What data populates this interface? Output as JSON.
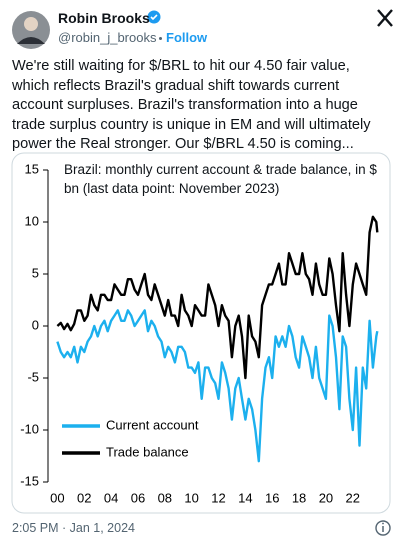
{
  "tweet": {
    "author": {
      "name": "Robin Brooks",
      "handle": "@robin_j_brooks"
    },
    "follow": "Follow",
    "text": "We're still waiting for $/BRL to hit our 4.50 fair value, which reflects Brazil's gradual shift towards current account surpluses. Brazil's transformation into a huge trade surplus country is unique in EM and will ultimately power the Real stronger. Our $/BRL 4.50 is coming...",
    "timestamp": "2:05 PM · Jan 1, 2024"
  },
  "chart_data": {
    "type": "line",
    "title": "Brazil: monthly current account & trade balance, in $ bn (last data point: November 2023)",
    "x": [
      2000,
      2000.25,
      2000.5,
      2000.75,
      2001,
      2001.25,
      2001.5,
      2001.75,
      2002,
      2002.25,
      2002.5,
      2002.75,
      2003,
      2003.25,
      2003.5,
      2003.75,
      2004,
      2004.25,
      2004.5,
      2004.75,
      2005,
      2005.25,
      2005.5,
      2005.75,
      2006,
      2006.25,
      2006.5,
      2006.75,
      2007,
      2007.25,
      2007.5,
      2007.75,
      2008,
      2008.25,
      2008.5,
      2008.75,
      2009,
      2009.25,
      2009.5,
      2009.75,
      2010,
      2010.25,
      2010.5,
      2010.75,
      2011,
      2011.25,
      2011.5,
      2011.75,
      2012,
      2012.25,
      2012.5,
      2012.75,
      2013,
      2013.25,
      2013.5,
      2013.75,
      2014,
      2014.25,
      2014.5,
      2014.75,
      2015,
      2015.25,
      2015.5,
      2015.75,
      2016,
      2016.25,
      2016.5,
      2016.75,
      2017,
      2017.25,
      2017.5,
      2017.75,
      2018,
      2018.25,
      2018.5,
      2018.75,
      2019,
      2019.25,
      2019.5,
      2019.75,
      2020,
      2020.25,
      2020.5,
      2020.75,
      2021,
      2021.25,
      2021.5,
      2021.75,
      2022,
      2022.25,
      2022.5,
      2022.75,
      2023,
      2023.25,
      2023.5,
      2023.75,
      2023.83
    ],
    "series": [
      {
        "name": "Current account",
        "color": "#1cb0ee",
        "values": [
          -1.5,
          -2.5,
          -3,
          -2.5,
          -3,
          -2,
          -3.5,
          -2,
          -2.5,
          -1.5,
          -1,
          0,
          -1,
          0,
          0.5,
          -0.5,
          0.5,
          1,
          1.5,
          0.5,
          0.5,
          1.5,
          1,
          0,
          0.5,
          1,
          1.5,
          -0.5,
          0.5,
          0,
          -1,
          -1.5,
          -3,
          -2,
          -2.5,
          -3.5,
          -2,
          -2,
          -2.5,
          -4,
          -4,
          -4.5,
          -3.5,
          -7,
          -4,
          -4,
          -5,
          -5.5,
          -7,
          -3.5,
          -4.5,
          -6,
          -9,
          -6,
          -5,
          -7,
          -9,
          -7,
          -8,
          -10,
          -13,
          -7,
          -4,
          -3,
          -5,
          -1,
          -2,
          -1,
          -2,
          0,
          -1,
          -3,
          -4,
          -1,
          -2,
          -3,
          -5,
          -2,
          -5,
          -6,
          -7,
          1,
          0,
          -3,
          -8,
          -1,
          -2,
          -7,
          -10,
          -4,
          -11.5,
          -4,
          -6,
          0.5,
          -4,
          -1,
          -0.5
        ]
      },
      {
        "name": "Trade balance",
        "color": "#000000",
        "values": [
          0,
          0.3,
          -0.3,
          0.2,
          -0.4,
          0.2,
          1.5,
          1.5,
          0.5,
          1,
          3,
          2,
          1.5,
          3,
          3,
          2.5,
          2.5,
          4,
          3.5,
          3,
          3,
          4.5,
          4.5,
          3.5,
          3,
          4,
          5,
          3,
          2.5,
          4,
          3,
          2,
          1,
          2.5,
          1,
          1,
          0,
          3,
          1.5,
          1,
          0,
          2,
          1.5,
          1,
          1,
          4,
          3,
          2,
          0,
          2,
          1,
          0.5,
          -3,
          0,
          1,
          -1,
          -5,
          1,
          -1,
          -1.5,
          -3,
          2,
          3,
          4,
          4,
          5,
          6,
          4,
          4,
          7,
          6,
          5,
          5,
          7,
          5,
          4.5,
          3,
          6,
          4,
          3,
          3,
          6.5,
          5,
          2,
          -0.5,
          7,
          3,
          0,
          4,
          6,
          5,
          4,
          3,
          9,
          10.5,
          10,
          9
        ]
      }
    ],
    "xlim": [
      1999.3,
      2024.4
    ],
    "xticks": [
      {
        "value": 2000,
        "label": "00"
      },
      {
        "value": 2002,
        "label": "02"
      },
      {
        "value": 2004,
        "label": "04"
      },
      {
        "value": 2006,
        "label": "06"
      },
      {
        "value": 2008,
        "label": "08"
      },
      {
        "value": 2010,
        "label": "10"
      },
      {
        "value": 2012,
        "label": "12"
      },
      {
        "value": 2014,
        "label": "14"
      },
      {
        "value": 2016,
        "label": "16"
      },
      {
        "value": 2018,
        "label": "18"
      },
      {
        "value": 2020,
        "label": "20"
      },
      {
        "value": 2022,
        "label": "22"
      }
    ],
    "ylim": [
      -15,
      15
    ],
    "yticks": [
      15,
      10,
      5,
      0,
      -5,
      -10,
      -15
    ],
    "legend": "lower left"
  }
}
